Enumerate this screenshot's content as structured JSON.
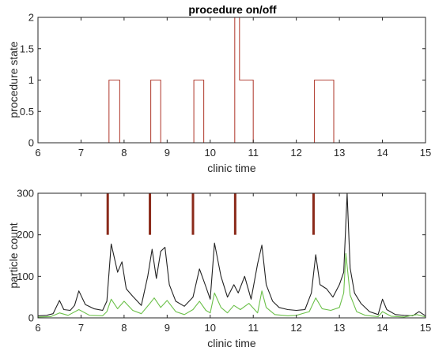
{
  "chart_data": [
    {
      "type": "line",
      "title": "procedure on/off",
      "xlabel": "clinic time",
      "ylabel": "procedure state",
      "xlim": [
        6,
        15
      ],
      "ylim": [
        0,
        2
      ],
      "xticks": [
        "6",
        "7",
        "8",
        "9",
        "10",
        "11",
        "12",
        "13",
        "14",
        "15"
      ],
      "yticks": [
        "0",
        "0.5",
        "1",
        "1.5",
        "2"
      ],
      "grid": false,
      "color": "#b5473b",
      "x": [
        6,
        7.65,
        7.65,
        7.9,
        7.9,
        8.62,
        8.62,
        8.85,
        8.85,
        9.62,
        9.62,
        9.85,
        9.85,
        10.57,
        10.57,
        10.68,
        10.68,
        10.74,
        10.74,
        11.0,
        11.0,
        12.42,
        12.42,
        12.87,
        12.87,
        15
      ],
      "y": [
        0,
        0,
        1,
        1,
        0,
        0,
        1,
        1,
        0,
        0,
        1,
        1,
        0,
        0,
        2,
        2,
        1,
        1,
        1,
        1,
        0,
        0,
        1,
        1,
        0,
        0
      ]
    },
    {
      "type": "line",
      "title": "",
      "xlabel": "clinic time",
      "ylabel": "particle count",
      "xlim": [
        6,
        15
      ],
      "ylim": [
        0,
        300
      ],
      "xticks": [
        "6",
        "7",
        "8",
        "9",
        "10",
        "11",
        "12",
        "13",
        "14",
        "15"
      ],
      "yticks": [
        "0",
        "100",
        "200",
        "300"
      ],
      "grid": false,
      "markers": {
        "color": "#8b2a1a",
        "x": [
          7.62,
          8.6,
          9.6,
          10.58,
          12.4
        ],
        "y_range": [
          200,
          300
        ]
      },
      "series": [
        {
          "color": "#222222",
          "x": [
            6.0,
            6.2,
            6.35,
            6.5,
            6.6,
            6.75,
            6.85,
            6.95,
            7.1,
            7.3,
            7.5,
            7.6,
            7.7,
            7.85,
            7.95,
            8.05,
            8.2,
            8.4,
            8.55,
            8.65,
            8.75,
            8.85,
            8.95,
            9.05,
            9.2,
            9.4,
            9.6,
            9.75,
            9.9,
            10.0,
            10.1,
            10.25,
            10.4,
            10.55,
            10.65,
            10.8,
            10.95,
            11.1,
            11.2,
            11.3,
            11.45,
            11.6,
            11.8,
            12.0,
            12.2,
            12.35,
            12.45,
            12.55,
            12.7,
            12.85,
            13.0,
            13.1,
            13.18,
            13.25,
            13.35,
            13.5,
            13.7,
            13.9,
            14.0,
            14.1,
            14.3,
            14.5,
            14.7,
            14.85,
            15.0
          ],
          "y": [
            5,
            6,
            10,
            42,
            20,
            18,
            30,
            65,
            32,
            22,
            18,
            40,
            178,
            110,
            135,
            70,
            52,
            30,
            100,
            165,
            95,
            160,
            170,
            80,
            40,
            28,
            50,
            118,
            75,
            45,
            180,
            100,
            50,
            80,
            60,
            100,
            45,
            130,
            175,
            80,
            40,
            25,
            20,
            18,
            20,
            60,
            152,
            80,
            70,
            50,
            80,
            110,
            300,
            120,
            60,
            35,
            15,
            8,
            45,
            20,
            8,
            6,
            5,
            15,
            5
          ]
        },
        {
          "color": "#6cc04a",
          "x": [
            6.0,
            6.3,
            6.5,
            6.7,
            6.95,
            7.2,
            7.5,
            7.6,
            7.7,
            7.85,
            8.0,
            8.2,
            8.4,
            8.6,
            8.7,
            8.85,
            9.0,
            9.2,
            9.4,
            9.6,
            9.75,
            9.9,
            10.0,
            10.1,
            10.25,
            10.4,
            10.55,
            10.7,
            10.9,
            11.1,
            11.2,
            11.3,
            11.5,
            11.8,
            12.0,
            12.3,
            12.45,
            12.6,
            12.8,
            13.0,
            13.1,
            13.15,
            13.25,
            13.4,
            13.6,
            13.9,
            14.0,
            14.2,
            14.5,
            14.8,
            15.0
          ],
          "y": [
            2,
            3,
            12,
            6,
            20,
            6,
            5,
            15,
            45,
            22,
            40,
            18,
            10,
            35,
            48,
            25,
            42,
            15,
            8,
            20,
            40,
            18,
            12,
            60,
            25,
            12,
            30,
            20,
            35,
            12,
            65,
            25,
            8,
            5,
            6,
            15,
            48,
            22,
            18,
            25,
            60,
            155,
            55,
            15,
            6,
            3,
            15,
            4,
            2,
            8,
            2
          ]
        }
      ]
    }
  ]
}
